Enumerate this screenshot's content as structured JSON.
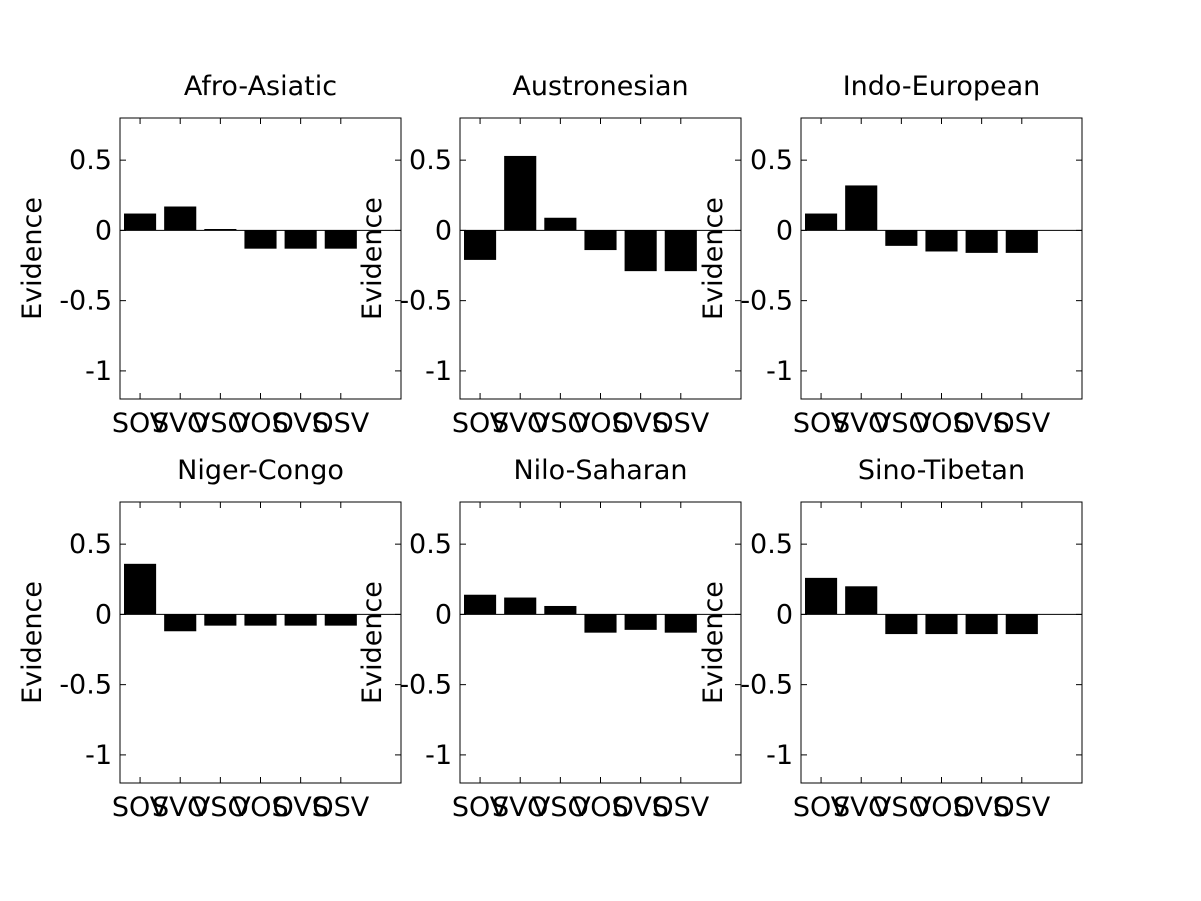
{
  "chart_data": [
    {
      "type": "bar",
      "title": "Afro-Asiatic",
      "ylabel": "Evidence",
      "categories": [
        "SOV",
        "SVO",
        "VSO",
        "VOS",
        "OVS",
        "OSV"
      ],
      "values": [
        0.12,
        0.17,
        0.01,
        -0.13,
        -0.13,
        -0.13
      ],
      "ylim": [
        -1.2,
        0.8
      ],
      "yticks": [
        -1,
        -0.5,
        0,
        0.5
      ],
      "ytick_labels": [
        "-1",
        "-0.5",
        "0",
        "0.5"
      ]
    },
    {
      "type": "bar",
      "title": "Austronesian",
      "ylabel": "Evidence",
      "categories": [
        "SOV",
        "SVO",
        "VSO",
        "VOS",
        "OVS",
        "OSV"
      ],
      "values": [
        -0.21,
        0.53,
        0.09,
        -0.14,
        -0.29,
        -0.29
      ],
      "ylim": [
        -1.2,
        0.8
      ],
      "yticks": [
        -1,
        -0.5,
        0,
        0.5
      ],
      "ytick_labels": [
        "-1",
        "-0.5",
        "0",
        "0.5"
      ]
    },
    {
      "type": "bar",
      "title": "Indo-European",
      "ylabel": "Evidence",
      "categories": [
        "SOV",
        "SVO",
        "VSO",
        "VOS",
        "OVS",
        "OSV"
      ],
      "values": [
        0.12,
        0.32,
        -0.11,
        -0.15,
        -0.16,
        -0.16
      ],
      "ylim": [
        -1.2,
        0.8
      ],
      "yticks": [
        -1,
        -0.5,
        0,
        0.5
      ],
      "ytick_labels": [
        "-1",
        "-0.5",
        "0",
        "0.5"
      ]
    },
    {
      "type": "bar",
      "title": "Niger-Congo",
      "ylabel": "Evidence",
      "categories": [
        "SOV",
        "SVO",
        "VSO",
        "VOS",
        "OVS",
        "OSV"
      ],
      "values": [
        0.36,
        -0.12,
        -0.08,
        -0.08,
        -0.08,
        -0.08
      ],
      "ylim": [
        -1.2,
        0.8
      ],
      "yticks": [
        -1,
        -0.5,
        0,
        0.5
      ],
      "ytick_labels": [
        "-1",
        "-0.5",
        "0",
        "0.5"
      ]
    },
    {
      "type": "bar",
      "title": "Nilo-Saharan",
      "ylabel": "Evidence",
      "categories": [
        "SOV",
        "SVO",
        "VSO",
        "VOS",
        "OVS",
        "OSV"
      ],
      "values": [
        0.14,
        0.12,
        0.06,
        -0.13,
        -0.11,
        -0.13
      ],
      "ylim": [
        -1.2,
        0.8
      ],
      "yticks": [
        -1,
        -0.5,
        0,
        0.5
      ],
      "ytick_labels": [
        "-1",
        "-0.5",
        "0",
        "0.5"
      ]
    },
    {
      "type": "bar",
      "title": "Sino-Tibetan",
      "ylabel": "Evidence",
      "categories": [
        "SOV",
        "SVO",
        "VSO",
        "VOS",
        "OVS",
        "OSV"
      ],
      "values": [
        0.26,
        0.2,
        -0.14,
        -0.14,
        -0.14,
        -0.14
      ],
      "ylim": [
        -1.2,
        0.8
      ],
      "yticks": [
        -1,
        -0.5,
        0,
        0.5
      ],
      "ytick_labels": [
        "-1",
        "-0.5",
        "0",
        "0.5"
      ]
    }
  ],
  "colors": {
    "bar": "#000000",
    "axis": "#000000",
    "background": "#ffffff"
  }
}
